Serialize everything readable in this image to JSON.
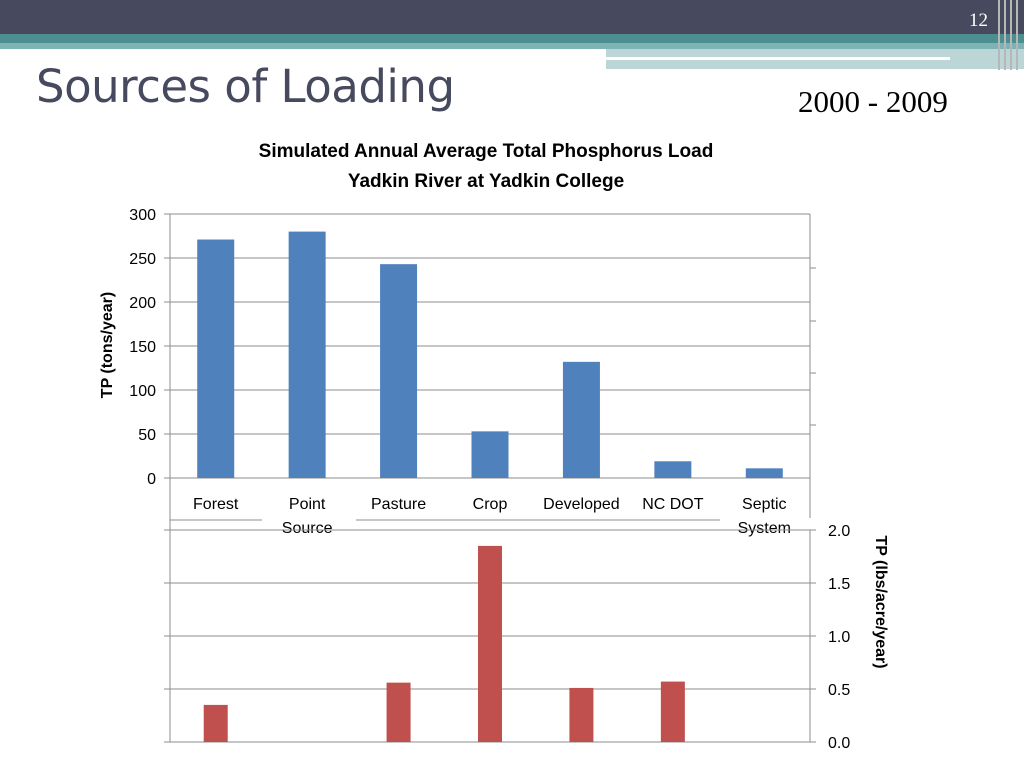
{
  "slide": {
    "page_number": "12",
    "title": "Sources of Loading",
    "date_range": "2000 - 2009"
  },
  "colors": {
    "header": "#474a5e",
    "teal": "#4d8f90",
    "bar_blue": "#4f81bd",
    "bar_red": "#c0504d"
  },
  "chart_data": [
    {
      "type": "bar",
      "title": "Simulated Annual Average Total Phosphorus Load",
      "subtitle": "Yadkin River at Yadkin College",
      "categories": [
        [
          "Forest"
        ],
        [
          "Point",
          "Source"
        ],
        [
          "Pasture"
        ],
        [
          "Crop"
        ],
        [
          "Developed"
        ],
        [
          "NC DOT"
        ],
        [
          "Septic",
          "System"
        ]
      ],
      "values": [
        271,
        280,
        243,
        53,
        132,
        19,
        11
      ],
      "ylabel": "TP (tons/year)",
      "ylim": [
        0,
        300
      ],
      "yticks": [
        0,
        50,
        100,
        150,
        200,
        250,
        300
      ],
      "grid": true,
      "color": "#4f81bd"
    },
    {
      "type": "bar",
      "categories": [
        [
          "Forest"
        ],
        [
          "Point",
          "Source"
        ],
        [
          "Pasture"
        ],
        [
          "Crop"
        ],
        [
          "Developed"
        ],
        [
          "NC DOT"
        ],
        [
          "Septic",
          "System"
        ]
      ],
      "values": [
        0.35,
        0,
        0.56,
        1.85,
        0.51,
        0.57,
        0
      ],
      "ylabel": "TP (lbs/acre/year)",
      "ylim": [
        0,
        2.0
      ],
      "yticks": [
        "0.0",
        "0.5",
        "1.0",
        "1.5",
        "2.0"
      ],
      "axis_side": "right",
      "grid": true,
      "color": "#c0504d"
    }
  ]
}
